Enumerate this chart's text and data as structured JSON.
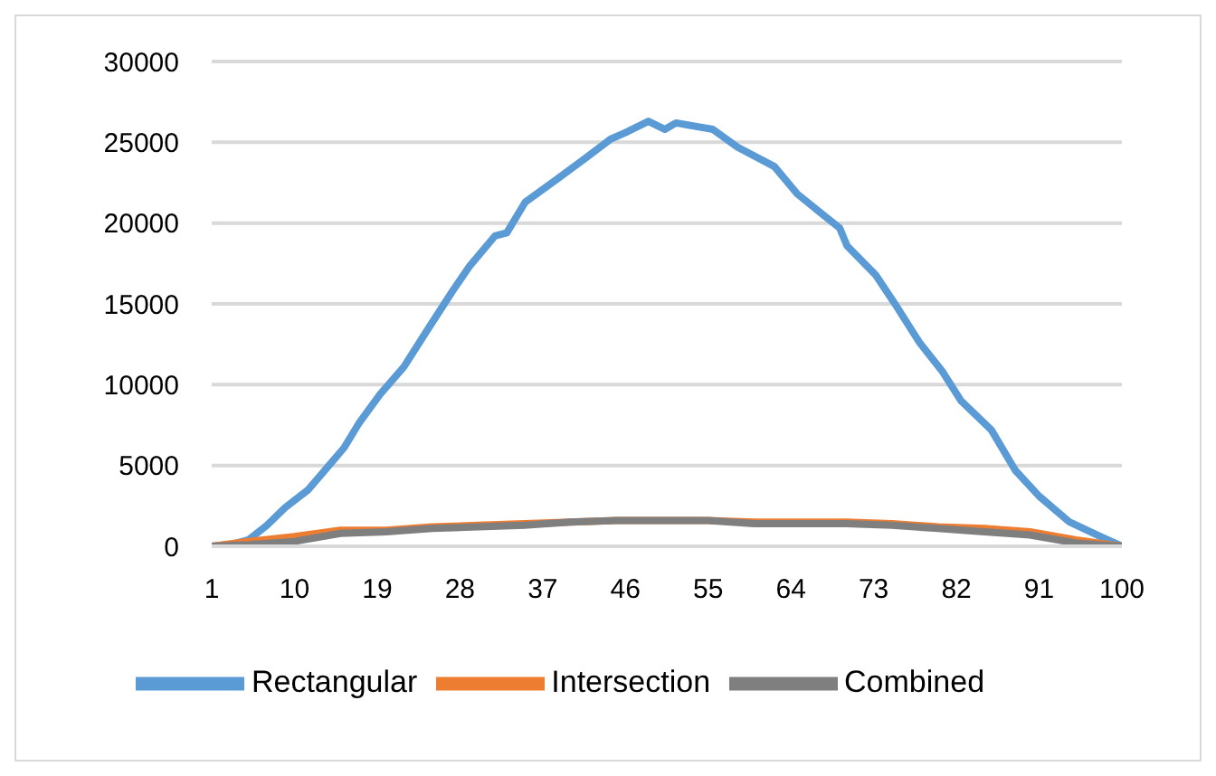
{
  "chart_data": {
    "type": "line",
    "xlim": [
      1,
      100
    ],
    "xticks": [
      1,
      10,
      19,
      28,
      37,
      46,
      55,
      64,
      73,
      82,
      91,
      100
    ],
    "ylim": [
      0,
      30000
    ],
    "yticks": [
      0,
      5000,
      10000,
      15000,
      20000,
      25000,
      30000
    ],
    "grid": "y",
    "legend": "bottom",
    "marker": "none",
    "line_style": "solid",
    "series": [
      {
        "name": "Rectangular",
        "color": "#5b9bd5",
        "x": [
          1,
          3,
          5,
          7,
          9,
          11.5,
          13,
          15.4,
          17,
          19.3,
          21.9,
          24.7,
          27.2,
          29,
          31.8,
          33.1,
          35.1,
          38.5,
          41.6,
          44.4,
          46,
          48.5,
          50.3,
          51.5,
          55.5,
          58.2,
          62.2,
          64.7,
          67.3,
          69.3,
          70.1,
          73.2,
          75.2,
          78,
          80.5,
          82.5,
          85.8,
          88.4,
          91,
          94.3,
          97.7,
          100
        ],
        "values": [
          0,
          100,
          400,
          1300,
          2400,
          3500,
          4500,
          6100,
          7600,
          9400,
          11100,
          13600,
          15800,
          17300,
          19200,
          19400,
          21300,
          22700,
          24000,
          25200,
          25600,
          26300,
          25800,
          26200,
          25800,
          24700,
          23500,
          21800,
          20600,
          19700,
          18600,
          16800,
          15100,
          12600,
          10800,
          9000,
          7200,
          4700,
          3100,
          1500,
          600,
          0
        ]
      },
      {
        "name": "Intersection",
        "color": "#ed7d31",
        "x": [
          1,
          5,
          10,
          15,
          20,
          25,
          30,
          35,
          40,
          45,
          50,
          55,
          60,
          65,
          70,
          75,
          80,
          85,
          90,
          95,
          100
        ],
        "values": [
          0,
          300,
          600,
          1000,
          1000,
          1200,
          1300,
          1400,
          1500,
          1600,
          1600,
          1600,
          1500,
          1500,
          1500,
          1400,
          1200,
          1100,
          900,
          400,
          0
        ]
      },
      {
        "name": "Combined",
        "color": "#7f7f7f",
        "x": [
          1,
          5,
          10,
          15,
          20,
          25,
          30,
          35,
          40,
          45,
          50,
          55,
          60,
          65,
          70,
          75,
          80,
          85,
          90,
          95,
          100
        ],
        "values": [
          0,
          100,
          300,
          800,
          900,
          1100,
          1200,
          1300,
          1500,
          1600,
          1600,
          1600,
          1400,
          1400,
          1400,
          1300,
          1100,
          900,
          700,
          200,
          0
        ]
      }
    ]
  }
}
